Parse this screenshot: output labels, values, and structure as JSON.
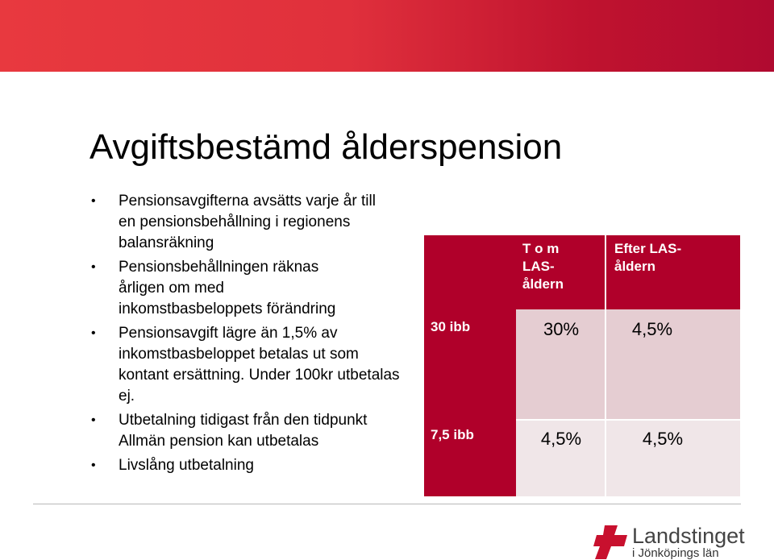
{
  "slide": {
    "title": "Avgiftsbestämd ålderspension",
    "bullets": [
      "Pensionsavgifterna avsätts varje år till en pensionsbehållning i regionens balansräkning",
      "Pensionsbehållningen räknas årligen om med inkomstbasbeloppets förändring",
      "Pensionsavgift lägre än 1,5% av inkomstbasbeloppet betalas ut som kontant ersättning. Under 100kr utbetalas ej.",
      "Utbetalning tidigast från den tidpunkt Allmän pension kan utbetalas",
      "Livslång utbetalning"
    ],
    "bullet_glyph": "•"
  },
  "table": {
    "headers": [
      "T o m LAS-åldern",
      "Efter LAS-åldern"
    ],
    "rows": [
      {
        "label": "30 ibb",
        "values": [
          "30%",
          "4,5%"
        ]
      },
      {
        "label": "7,5 ibb",
        "values": [
          "4,5%",
          "4,5%"
        ]
      }
    ]
  },
  "logo": {
    "name": "Landstinget",
    "sub": "i Jönköpings län"
  },
  "colors": {
    "band_start": "#e8393f",
    "band_end": "#b00a30",
    "table_red": "#b0002a",
    "table_pink": "#e5cdd2",
    "table_lightpink": "#f0e6e8"
  }
}
